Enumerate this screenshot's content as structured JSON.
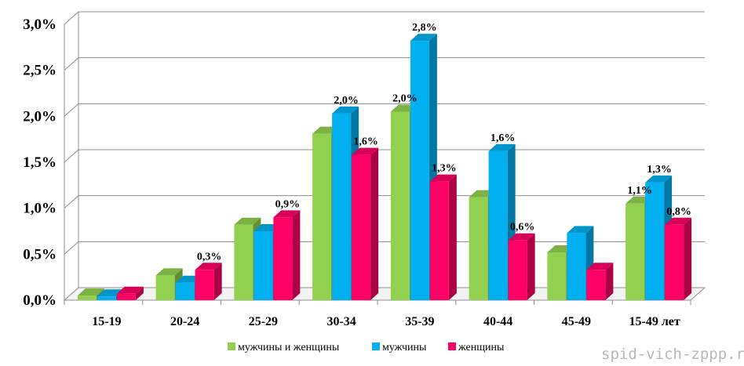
{
  "chart_data": {
    "type": "bar",
    "categories": [
      "15-19",
      "20-24",
      "25-29",
      "30-34",
      "35-39",
      "40-44",
      "45-49",
      "15-49 лет"
    ],
    "series": [
      {
        "name": "мужчины и женщины",
        "color": "#92d050",
        "values": [
          0.05,
          0.27,
          0.82,
          1.81,
          2.05,
          1.12,
          0.52,
          1.05
        ],
        "labels": [
          "",
          "",
          "",
          "",
          "2,0%",
          "",
          "",
          "1,1%"
        ]
      },
      {
        "name": "мужчины",
        "color": "#00b0f0",
        "values": [
          0.04,
          0.19,
          0.75,
          2.03,
          2.82,
          1.62,
          0.73,
          1.28
        ],
        "labels": [
          "",
          "",
          "",
          "2,0%",
          "2,8%",
          "1,6%",
          "",
          "1,3%"
        ]
      },
      {
        "name": "женщины",
        "color": "#ff0066",
        "values": [
          0.07,
          0.33,
          0.9,
          1.58,
          1.29,
          0.65,
          0.33,
          0.82
        ],
        "labels": [
          "",
          "0,3%",
          "0,9%",
          "1,6%",
          "1,3%",
          "0,6%",
          "",
          "0,8%"
        ]
      }
    ],
    "y_ticks": [
      "0,0%",
      "0,5%",
      "1,0%",
      "1,5%",
      "2,0%",
      "2,5%",
      "3,0%"
    ],
    "ylim": [
      0,
      3.0
    ],
    "grid": true,
    "legend_position": "bottom"
  },
  "watermark": "spid-vich-zppp.ru"
}
